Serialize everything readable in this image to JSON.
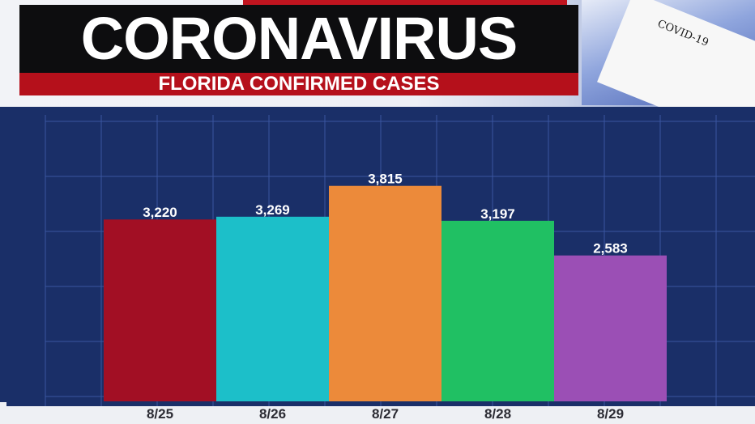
{
  "header": {
    "title": "CORONAVIRUS",
    "subtitle": "FLORIDA CONFIRMED CASES",
    "strip_label": "COVID-19"
  },
  "colors": {
    "title_bg": "#0d0d0f",
    "subtitle_bg": "#b5101b",
    "chart_bg": "#1a2f68",
    "grid": "#3a55a0"
  },
  "chart_data": {
    "type": "bar",
    "categories": [
      "8/25",
      "8/26",
      "8/27",
      "8/28",
      "8/29"
    ],
    "values": [
      3220,
      3269,
      3815,
      3197,
      2583
    ],
    "value_labels": [
      "3,220",
      "3,269",
      "3,815",
      "3,197",
      "2,583"
    ],
    "bar_colors": [
      "#a20f24",
      "#1cbfc9",
      "#ec8a3a",
      "#20c063",
      "#9b4fb5"
    ],
    "ylim": [
      0,
      4000
    ],
    "grid": true
  }
}
